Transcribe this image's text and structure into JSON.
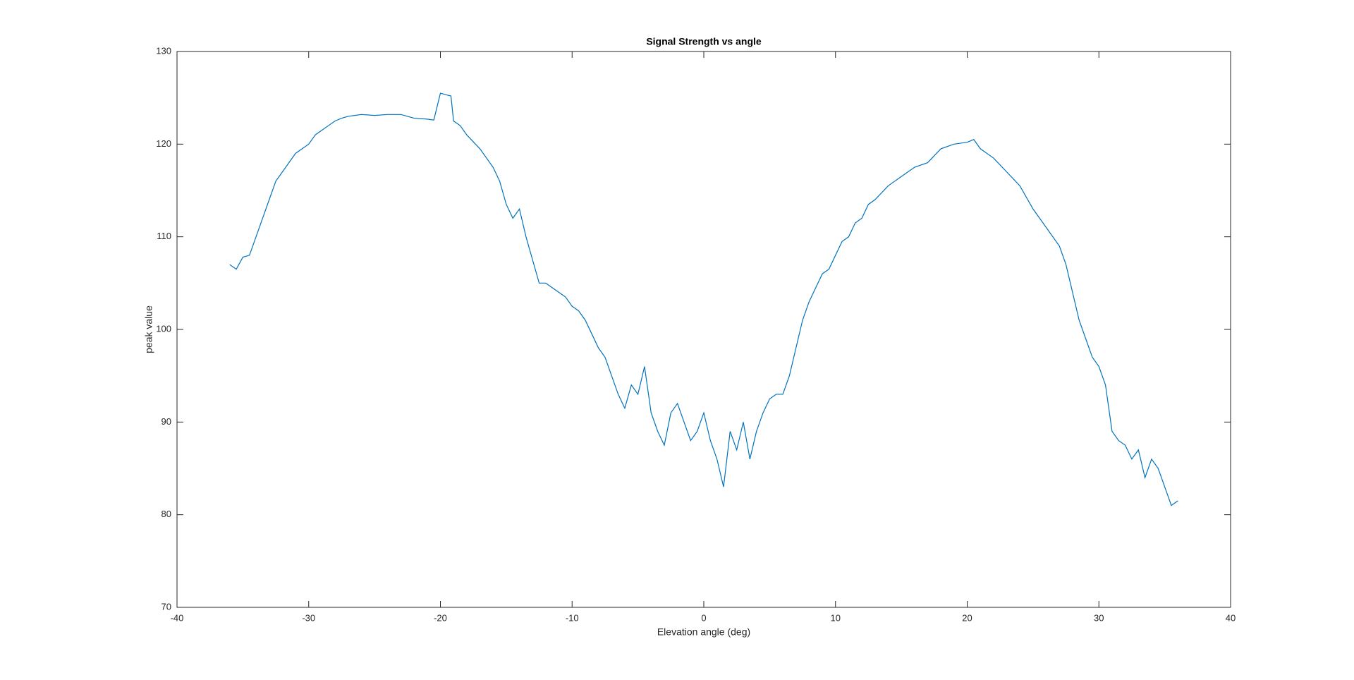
{
  "chart_data": {
    "type": "line",
    "title": "Signal Strength vs angle",
    "x_label": "Elevation angle (deg)",
    "y_label": "peak value",
    "x": [
      -36,
      -35.5,
      -35,
      -34.5,
      -34,
      -33.5,
      -33,
      -32.5,
      -32,
      -31.5,
      -31,
      -30.5,
      -30,
      -29.5,
      -29,
      -28.5,
      -28,
      -27.5,
      -27,
      -26,
      -25,
      -24,
      -23,
      -22,
      -21,
      -20.5,
      -20,
      -19.5,
      -19.2,
      -19,
      -18.5,
      -18,
      -17,
      -16,
      -15.5,
      -15,
      -14.5,
      -14,
      -13.5,
      -13,
      -12.5,
      -12,
      -11,
      -10.5,
      -10,
      -9.5,
      -9,
      -8.5,
      -8,
      -7.5,
      -7,
      -6.5,
      -6,
      -5.5,
      -5,
      -4.5,
      -4,
      -3.5,
      -3,
      -2.5,
      -2,
      -1.5,
      -1,
      -0.5,
      0,
      0.5,
      1,
      1.5,
      2,
      2.5,
      3,
      3.5,
      4,
      4.5,
      5,
      5.5,
      6,
      6.5,
      7,
      7.5,
      8,
      8.5,
      9,
      9.5,
      10,
      10.5,
      11,
      11.5,
      12,
      12.5,
      13,
      14,
      15,
      16,
      17,
      18,
      19,
      20,
      20.5,
      21,
      22,
      23,
      24,
      25,
      26,
      27,
      27.5,
      28,
      28.5,
      29,
      29.5,
      30,
      30.5,
      31,
      31.5,
      32,
      32.5,
      33,
      33.5,
      34,
      34.5,
      35,
      35.5,
      36
    ],
    "series": [
      {
        "name": "peak value",
        "color": "#0072bd",
        "values": [
          107,
          106.5,
          107.8,
          108,
          110,
          112,
          114,
          116,
          117,
          118,
          119,
          119.5,
          120,
          121,
          121.5,
          122,
          122.5,
          122.8,
          123,
          123.2,
          123.1,
          123.2,
          123.2,
          122.8,
          122.7,
          122.6,
          125.5,
          125.3,
          125.2,
          122.5,
          122,
          121,
          119.5,
          117.5,
          116,
          113.5,
          112,
          113,
          110,
          107.5,
          105,
          105,
          104,
          103.5,
          102.5,
          102,
          101,
          99.5,
          98,
          97,
          95,
          93,
          91.5,
          94,
          93,
          96,
          91,
          89,
          87.5,
          91,
          92,
          90,
          88,
          89,
          91,
          88,
          86,
          83,
          89,
          87,
          90,
          86,
          89,
          91,
          92.5,
          93,
          93,
          95,
          98,
          101,
          103,
          104.5,
          106,
          106.5,
          108,
          109.5,
          110,
          111.5,
          112,
          113.5,
          114,
          115.5,
          116.5,
          117.5,
          118,
          119.5,
          120,
          120.2,
          120.5,
          119.5,
          118.5,
          117,
          115.5,
          113,
          111,
          109,
          107,
          104,
          101,
          99,
          97,
          96,
          94,
          89,
          88,
          87.5,
          86,
          87,
          84,
          86,
          85,
          83,
          81,
          81.5
        ]
      }
    ],
    "xlim": [
      -40,
      40
    ],
    "xticks": [
      -40,
      -30,
      -20,
      -10,
      0,
      10,
      20,
      30,
      40
    ],
    "ylim": [
      70,
      130
    ],
    "yticks": [
      70,
      80,
      90,
      100,
      110,
      120,
      130
    ]
  }
}
